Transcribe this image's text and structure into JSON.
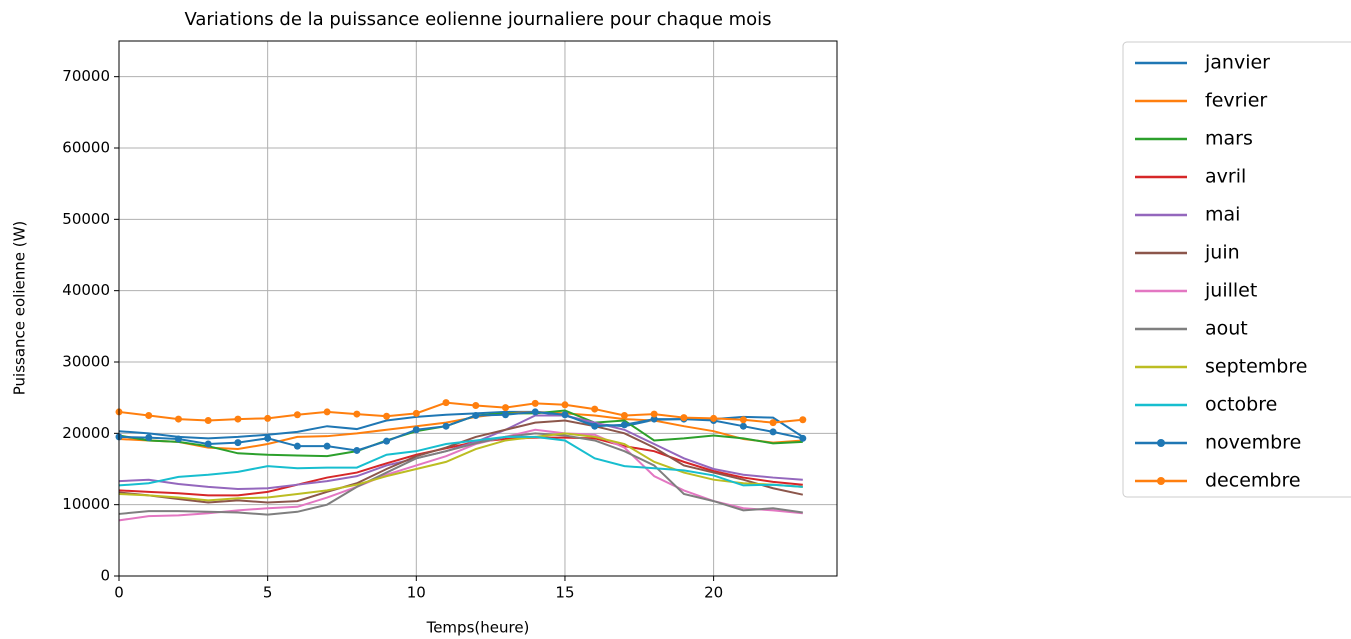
{
  "chart_data": {
    "type": "line",
    "title": "Variations de la puissance eolienne journaliere pour chaque mois",
    "x_label": "Temps(heure)",
    "y_label": "Puissance eolienne (W)",
    "x": [
      0,
      1,
      2,
      3,
      4,
      5,
      6,
      7,
      8,
      9,
      10,
      11,
      12,
      13,
      14,
      15,
      16,
      17,
      18,
      19,
      20,
      21,
      22,
      23
    ],
    "xlim": [
      0,
      24.15
    ],
    "ylim": [
      0,
      75000
    ],
    "xticks": [
      0,
      5,
      10,
      15,
      20
    ],
    "yticks": [
      0,
      10000,
      20000,
      30000,
      40000,
      50000,
      60000,
      70000
    ],
    "grid": true,
    "legend": "outside right",
    "series": [
      {
        "name": "janvier",
        "color": "#1f77b4",
        "values": [
          20300,
          20000,
          19500,
          19300,
          19500,
          19800,
          20200,
          21000,
          20600,
          21800,
          22300,
          22600,
          22800,
          23000,
          23000,
          22500,
          21300,
          21000,
          21900,
          22000,
          22000,
          22300,
          22200,
          19500
        ]
      },
      {
        "name": "fevrier",
        "color": "#ff7f0e",
        "values": [
          19200,
          19000,
          18800,
          18000,
          17800,
          18500,
          19500,
          19600,
          20000,
          20500,
          21000,
          21500,
          22300,
          22800,
          23000,
          22800,
          22500,
          22000,
          21800,
          21000,
          20300,
          19200,
          18700,
          19000
        ]
      },
      {
        "name": "mars",
        "color": "#2ca02c",
        "values": [
          19700,
          19000,
          18800,
          18200,
          17200,
          17000,
          16900,
          16800,
          17500,
          19000,
          20300,
          21000,
          22500,
          22800,
          22800,
          23200,
          21500,
          21800,
          19000,
          19300,
          19700,
          19300,
          18600,
          18800
        ]
      },
      {
        "name": "avril",
        "color": "#d62728",
        "values": [
          12000,
          11800,
          11600,
          11300,
          11300,
          11800,
          12800,
          13800,
          14500,
          15800,
          17000,
          17900,
          18800,
          19200,
          19400,
          19400,
          19300,
          18200,
          17500,
          16000,
          14700,
          13800,
          13200,
          12800
        ]
      },
      {
        "name": "mai",
        "color": "#9467bd",
        "values": [
          13300,
          13500,
          12900,
          12500,
          12200,
          12300,
          12800,
          13300,
          14000,
          15500,
          16500,
          17500,
          18800,
          20500,
          22500,
          22500,
          21500,
          20500,
          18500,
          16500,
          15000,
          14200,
          13800,
          13500
        ]
      },
      {
        "name": "juin",
        "color": "#8c564b",
        "values": [
          11700,
          11300,
          10800,
          10300,
          10600,
          10300,
          10500,
          11800,
          13000,
          15000,
          16800,
          18000,
          19500,
          20500,
          21500,
          21800,
          21000,
          20000,
          18000,
          15500,
          14500,
          13500,
          12300,
          11400
        ]
      },
      {
        "name": "juillet",
        "color": "#e377c2",
        "values": [
          7800,
          8400,
          8500,
          8800,
          9200,
          9500,
          9700,
          11000,
          12500,
          14200,
          15500,
          16800,
          18500,
          19500,
          20500,
          20000,
          19800,
          18000,
          14000,
          12000,
          10500,
          9500,
          9200,
          8800
        ]
      },
      {
        "name": "aout",
        "color": "#7f7f7f",
        "values": [
          8700,
          9100,
          9100,
          9000,
          8900,
          8600,
          9000,
          10000,
          12500,
          14500,
          16500,
          17500,
          18600,
          19500,
          20000,
          19700,
          19000,
          17500,
          15500,
          11500,
          10500,
          9200,
          9500,
          8900
        ]
      },
      {
        "name": "septembre",
        "color": "#bcbd22",
        "values": [
          11500,
          11300,
          11000,
          10600,
          10900,
          11000,
          11500,
          12000,
          12800,
          14000,
          15000,
          16000,
          17800,
          19000,
          19500,
          20000,
          19500,
          18500,
          16000,
          14500,
          13500,
          13000,
          12800,
          12500
        ]
      },
      {
        "name": "octobre",
        "color": "#17becf",
        "values": [
          12700,
          13000,
          13900,
          14200,
          14600,
          15400,
          15100,
          15200,
          15200,
          17000,
          17500,
          18500,
          19000,
          19500,
          19500,
          19000,
          16500,
          15400,
          15100,
          14800,
          14100,
          12700,
          12800,
          12500
        ]
      },
      {
        "name": "novembre",
        "color": "#1f77b4",
        "marker": "o",
        "values": [
          19500,
          19400,
          19200,
          18500,
          18700,
          19300,
          18200,
          18200,
          17600,
          18900,
          20500,
          21000,
          22500,
          22600,
          23000,
          22600,
          21000,
          21200,
          22000,
          22000,
          21800,
          21000,
          20200,
          19300
        ]
      },
      {
        "name": "decembre",
        "color": "#ff7f0e",
        "marker": "o",
        "values": [
          23000,
          22500,
          22000,
          21800,
          22000,
          22100,
          22600,
          23000,
          22700,
          22400,
          22800,
          24300,
          23900,
          23600,
          24200,
          24000,
          23400,
          22500,
          22700,
          22200,
          22100,
          21900,
          21500,
          21900
        ]
      }
    ]
  }
}
